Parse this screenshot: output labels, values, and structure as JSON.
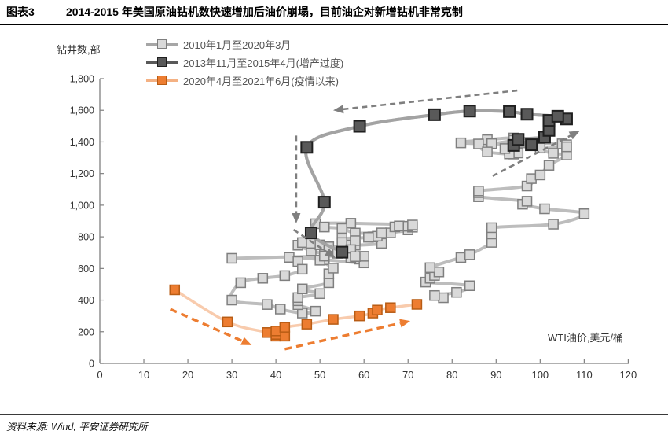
{
  "header": {
    "figure_label": "图表3",
    "title": "2014-2015 年美国原油钻机数快速增加后油价崩塌，目前油企对新增钻机非常克制"
  },
  "footer": {
    "source": "资料来源: Wind, 平安证券研究所"
  },
  "colors": {
    "axis": "#808080",
    "tick_text": "#333333",
    "header_rule": "#000000"
  },
  "chart_data": {
    "type": "scatter",
    "title": "",
    "xlabel": "WTI油价,美元/桶",
    "ylabel": "钻井数,部",
    "xlim": [
      0,
      120
    ],
    "xstep": 10,
    "ylim": [
      0,
      1800
    ],
    "ystep": 200,
    "grid": false,
    "legend_position": "top-left",
    "series": [
      {
        "name": "2010年1月至2020年3月",
        "marker_fill": "#d9d9d9",
        "marker_stroke": "#7f7f7f",
        "line": "#bdbdbd",
        "legend_line": "#a6a6a6",
        "marker_size": 12,
        "points": [
          [
            78,
            415
          ],
          [
            76,
            429
          ],
          [
            81,
            449
          ],
          [
            84,
            491
          ],
          [
            74,
            514
          ],
          [
            75,
            538
          ],
          [
            76,
            556
          ],
          [
            77,
            578
          ],
          [
            75,
            605
          ],
          [
            82,
            669
          ],
          [
            84,
            687
          ],
          [
            89,
            765
          ],
          [
            89,
            818
          ],
          [
            89,
            858
          ],
          [
            103,
            880
          ],
          [
            110,
            946
          ],
          [
            101,
            977
          ],
          [
            96,
            1006
          ],
          [
            97,
            1025
          ],
          [
            86,
            1053
          ],
          [
            86,
            1079
          ],
          [
            86,
            1090
          ],
          [
            97,
            1121
          ],
          [
            98,
            1168
          ],
          [
            100,
            1191
          ],
          [
            102,
            1252
          ],
          [
            106,
            1317
          ],
          [
            103,
            1328
          ],
          [
            94,
            1382
          ],
          [
            82,
            1394
          ],
          [
            88,
            1414
          ],
          [
            94,
            1425
          ],
          [
            94,
            1410
          ],
          [
            89,
            1389
          ],
          [
            86,
            1387
          ],
          [
            88,
            1337
          ],
          [
            94,
            1323
          ],
          [
            95,
            1330
          ],
          [
            93,
            1324
          ],
          [
            92,
            1358
          ],
          [
            95,
            1408
          ],
          [
            96,
            1397
          ],
          [
            105,
            1388
          ],
          [
            106,
            1382
          ],
          [
            106,
            1369
          ],
          [
            100,
            1361
          ],
          [
            94,
            1378
          ],
          [
            98,
            1382
          ],
          [
            95,
            1416
          ],
          [
            101,
            1430
          ],
          [
            102,
            1473
          ],
          [
            102,
            1534
          ],
          [
            102,
            1536
          ],
          [
            106,
            1545
          ],
          [
            104,
            1562
          ],
          [
            97,
            1575
          ],
          [
            93,
            1592
          ],
          [
            84,
            1595
          ],
          [
            76,
            1572
          ],
          [
            59,
            1499
          ],
          [
            47,
            1366
          ],
          [
            51,
            1019
          ],
          [
            48,
            825
          ],
          [
            55,
            703
          ],
          [
            59,
            659
          ],
          [
            60,
            635
          ],
          [
            51,
            655
          ],
          [
            43,
            670
          ],
          [
            45,
            644
          ],
          [
            46,
            595
          ],
          [
            42,
            555
          ],
          [
            37,
            538
          ],
          [
            32,
            510
          ],
          [
            30,
            400
          ],
          [
            38,
            372
          ],
          [
            41,
            343
          ],
          [
            46,
            318
          ],
          [
            49,
            330
          ],
          [
            45,
            371
          ],
          [
            45,
            396
          ],
          [
            45,
            416
          ],
          [
            50,
            441
          ],
          [
            46,
            471
          ],
          [
            52,
            510
          ],
          [
            52,
            566
          ],
          [
            53,
            602
          ],
          [
            50,
            652
          ],
          [
            51,
            688
          ],
          [
            48,
            712
          ],
          [
            45,
            747
          ],
          [
            46,
            764
          ],
          [
            48,
            759
          ],
          [
            50,
            749
          ],
          [
            52,
            737
          ],
          [
            57,
            747
          ],
          [
            58,
            747
          ],
          [
            64,
            759
          ],
          [
            62,
            799
          ],
          [
            63,
            804
          ],
          [
            66,
            825
          ],
          [
            70,
            844
          ],
          [
            67,
            863
          ],
          [
            71,
            861
          ],
          [
            68,
            869
          ],
          [
            70,
            867
          ],
          [
            71,
            875
          ],
          [
            57,
            886
          ],
          [
            49,
            883
          ],
          [
            51,
            862
          ],
          [
            55,
            853
          ],
          [
            58,
            824
          ],
          [
            64,
            825
          ],
          [
            61,
            797
          ],
          [
            55,
            789
          ],
          [
            58,
            776
          ],
          [
            55,
            764
          ],
          [
            57,
            719
          ],
          [
            54,
            696
          ],
          [
            57,
            668
          ],
          [
            60,
            677
          ],
          [
            58,
            675
          ],
          [
            51,
            678
          ],
          [
            30,
            664
          ]
        ]
      },
      {
        "name": "2013年11月至2015年4月(增产过度)",
        "marker_fill": "#595959",
        "marker_stroke": "#1f1f1f",
        "line": "#a3a3a3",
        "legend_line": "#595959",
        "marker_size": 14,
        "points": [
          [
            94,
            1378
          ],
          [
            98,
            1382
          ],
          [
            95,
            1416
          ],
          [
            101,
            1430
          ],
          [
            102,
            1473
          ],
          [
            102,
            1534
          ],
          [
            102,
            1536
          ],
          [
            106,
            1545
          ],
          [
            104,
            1562
          ],
          [
            97,
            1575
          ],
          [
            93,
            1592
          ],
          [
            84,
            1595
          ],
          [
            76,
            1572
          ],
          [
            59,
            1499
          ],
          [
            47,
            1366
          ],
          [
            51,
            1019
          ],
          [
            48,
            825
          ],
          [
            55,
            703
          ]
        ]
      },
      {
        "name": "2020年4月至2021年6月(疫情以来)",
        "marker_fill": "#ed7d31",
        "marker_stroke": "#b85c14",
        "line": "#f8cbad",
        "legend_line": "#f4b183",
        "marker_size": 12,
        "points": [
          [
            17,
            465
          ],
          [
            29,
            262
          ],
          [
            38,
            195
          ],
          [
            40,
            172
          ],
          [
            42,
            172
          ],
          [
            40,
            183
          ],
          [
            40,
            205
          ],
          [
            42,
            228
          ],
          [
            47,
            248
          ],
          [
            53,
            278
          ],
          [
            59,
            300
          ],
          [
            62,
            318
          ],
          [
            63,
            337
          ],
          [
            66,
            352
          ],
          [
            72,
            373
          ]
        ]
      }
    ],
    "annotations": [
      {
        "type": "arrow",
        "color": "#7f7f7f",
        "width": 2.6,
        "dash": "7 5",
        "from": [
          44.6,
          1440
        ],
        "to": [
          44.6,
          885
        ]
      },
      {
        "type": "arrow",
        "color": "#7f7f7f",
        "width": 2.6,
        "dash": "7 5",
        "from": [
          44,
          845
        ],
        "to": [
          53.5,
          668
        ]
      },
      {
        "type": "arrow",
        "color": "#7f7f7f",
        "width": 2.6,
        "dash": "7 5",
        "from": [
          94.8,
          1725
        ],
        "to": [
          53,
          1600
        ]
      },
      {
        "type": "arrow",
        "color": "#7f7f7f",
        "width": 2.6,
        "dash": "7 5",
        "from": [
          89.2,
          1185
        ],
        "to": [
          109,
          1470
        ]
      },
      {
        "type": "arrow",
        "color": "#ed7d31",
        "width": 3.4,
        "dash": "9 6",
        "from": [
          16,
          343
        ],
        "to": [
          34.5,
          115
        ]
      },
      {
        "type": "arrow",
        "color": "#ed7d31",
        "width": 3.4,
        "dash": "9 6",
        "from": [
          42,
          90
        ],
        "to": [
          70.5,
          268
        ]
      }
    ]
  }
}
